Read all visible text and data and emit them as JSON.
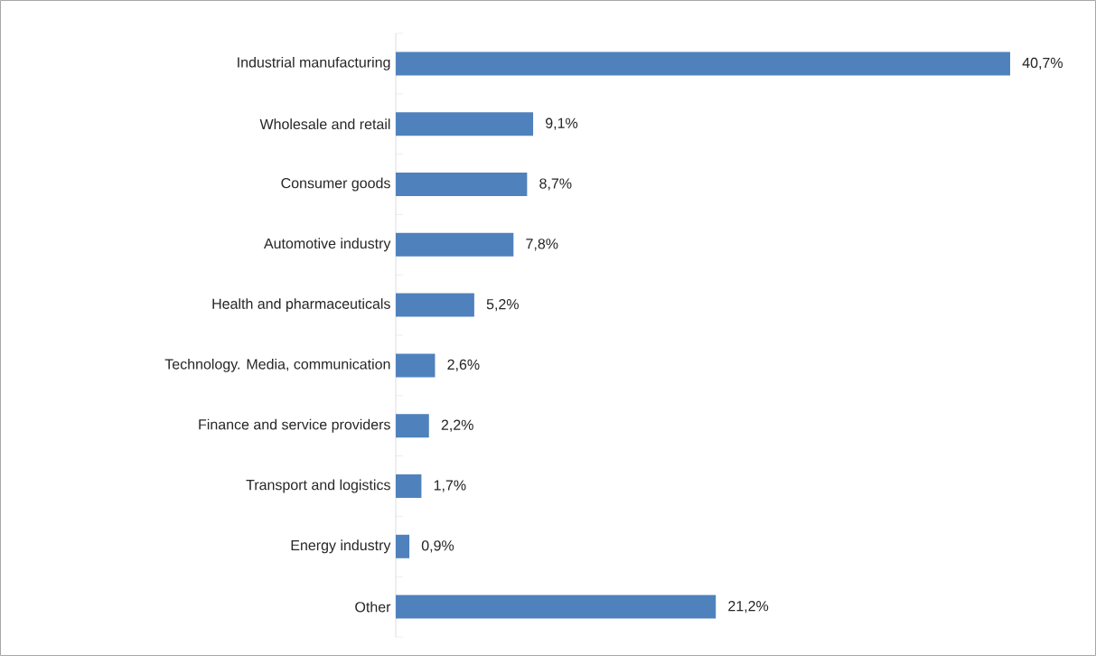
{
  "chart_data": {
    "type": "bar",
    "orientation": "horizontal",
    "categories": [
      "Industrial manufacturing",
      "Wholesale and retail",
      "Consumer goods",
      "Automotive industry",
      "Health and pharmaceuticals",
      "Technology. Media, communication",
      "Finance and service providers",
      "Transport and logistics",
      "Energy industry",
      "Other"
    ],
    "values": [
      40.7,
      9.1,
      8.7,
      7.8,
      5.2,
      2.6,
      2.2,
      1.7,
      0.9,
      21.2
    ],
    "value_labels": [
      "40,7%",
      "9,1%",
      "8,7%",
      "7,8%",
      "5,2%",
      "2,6%",
      "2,2%",
      "1,7%",
      "0,9%",
      "21,2%"
    ],
    "color": "#4f81bd"
  }
}
